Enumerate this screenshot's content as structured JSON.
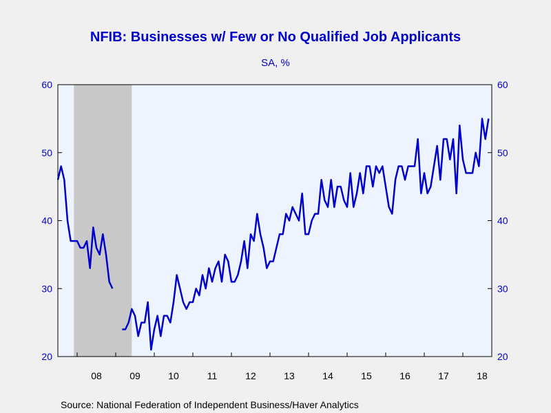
{
  "chart_data": {
    "type": "line",
    "title": "NFIB: Businesses w/ Few or No Qualified Job Applicants",
    "subtitle": "SA, %",
    "source": "Source:  National Federation of Independent Business/Haver Analytics",
    "ylim": [
      20,
      60
    ],
    "yticks": [
      20,
      30,
      40,
      50,
      60
    ],
    "x_start": 2007.5,
    "x_end": 2018.75,
    "xtick_labels": [
      {
        "year": 2008,
        "label": "08"
      },
      {
        "year": 2009,
        "label": "09"
      },
      {
        "year": 2010,
        "label": "10"
      },
      {
        "year": 2011,
        "label": "11"
      },
      {
        "year": 2012,
        "label": "12"
      },
      {
        "year": 2013,
        "label": "13"
      },
      {
        "year": 2014,
        "label": "14"
      },
      {
        "year": 2015,
        "label": "15"
      },
      {
        "year": 2016,
        "label": "16"
      },
      {
        "year": 2017,
        "label": "17"
      },
      {
        "year": 2018,
        "label": "18"
      }
    ],
    "recession": {
      "start": "2007-12",
      "end": "2009-06"
    },
    "series_color": "#0000cc",
    "plot_background": "#eef4ff",
    "recession_color": "#c8c8c8",
    "series": [
      {
        "segments": [
          {
            "start": "2007-07",
            "values": [
              46,
              48,
              46,
              40,
              37,
              37,
              37,
              36,
              36,
              37,
              33,
              39,
              36,
              35,
              38,
              35,
              31,
              30
            ]
          },
          {
            "start": "2009-03",
            "values": [
              24,
              24,
              25,
              27,
              26,
              23,
              25,
              25,
              28,
              21,
              24,
              26,
              23,
              26,
              26,
              25,
              28,
              32,
              30,
              28,
              27,
              28,
              28,
              30,
              29,
              32,
              30,
              33,
              31,
              33,
              34,
              31,
              35,
              34,
              31,
              31,
              32,
              34,
              37,
              33,
              38,
              37,
              41,
              38,
              36,
              33,
              34,
              34,
              36,
              38,
              38,
              41,
              40,
              42,
              41,
              40,
              44,
              38,
              38,
              40,
              41,
              41,
              46,
              43,
              42,
              46,
              42,
              45,
              45,
              43,
              42,
              47,
              42,
              44,
              47,
              44,
              48,
              48,
              45,
              48,
              47,
              48,
              45,
              42,
              41,
              46,
              48,
              48,
              46,
              48,
              48,
              48,
              52,
              44,
              47,
              44,
              45,
              48,
              51,
              46,
              52,
              52,
              49,
              52,
              44,
              54,
              49,
              47,
              47,
              47,
              50,
              48,
              55,
              52,
              55
            ]
          }
        ]
      }
    ]
  }
}
